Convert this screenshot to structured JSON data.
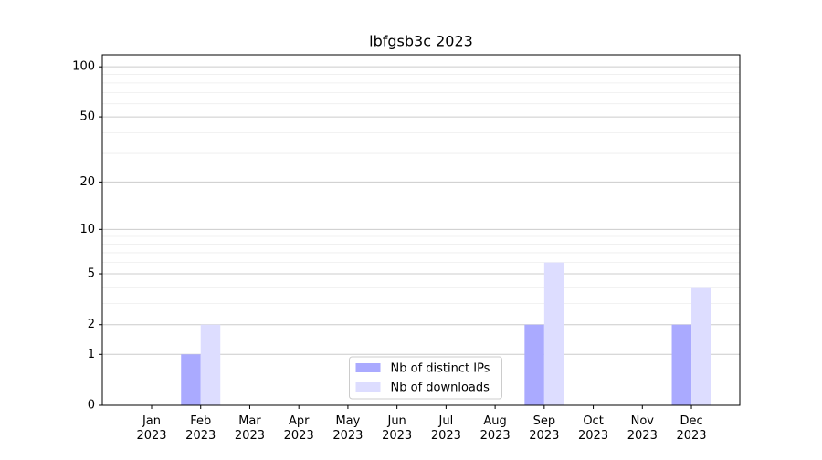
{
  "chart_data": {
    "type": "bar",
    "title": "lbfgsb3c 2023",
    "categories": [
      "Jan 2023",
      "Feb 2023",
      "Mar 2023",
      "Apr 2023",
      "May 2023",
      "Jun 2023",
      "Jul 2023",
      "Aug 2023",
      "Sep 2023",
      "Oct 2023",
      "Nov 2023",
      "Dec 2023"
    ],
    "series": [
      {
        "name": "Nb of distinct IPs",
        "color": "#aaaaff",
        "values": [
          0,
          1,
          0,
          0,
          0,
          0,
          0,
          0,
          2,
          0,
          0,
          2
        ]
      },
      {
        "name": "Nb of downloads",
        "color": "#ddddff",
        "values": [
          0,
          2,
          0,
          0,
          0,
          0,
          0,
          0,
          6,
          0,
          0,
          4
        ]
      }
    ],
    "yscale": "log1p",
    "ylim": [
      0,
      118
    ],
    "yticks": [
      0,
      1,
      2,
      5,
      10,
      20,
      50,
      100
    ],
    "minor_yticks": [
      3,
      4,
      6,
      7,
      8,
      9,
      30,
      40,
      60,
      70,
      80,
      90
    ],
    "grid": true,
    "legend": "lower center"
  }
}
